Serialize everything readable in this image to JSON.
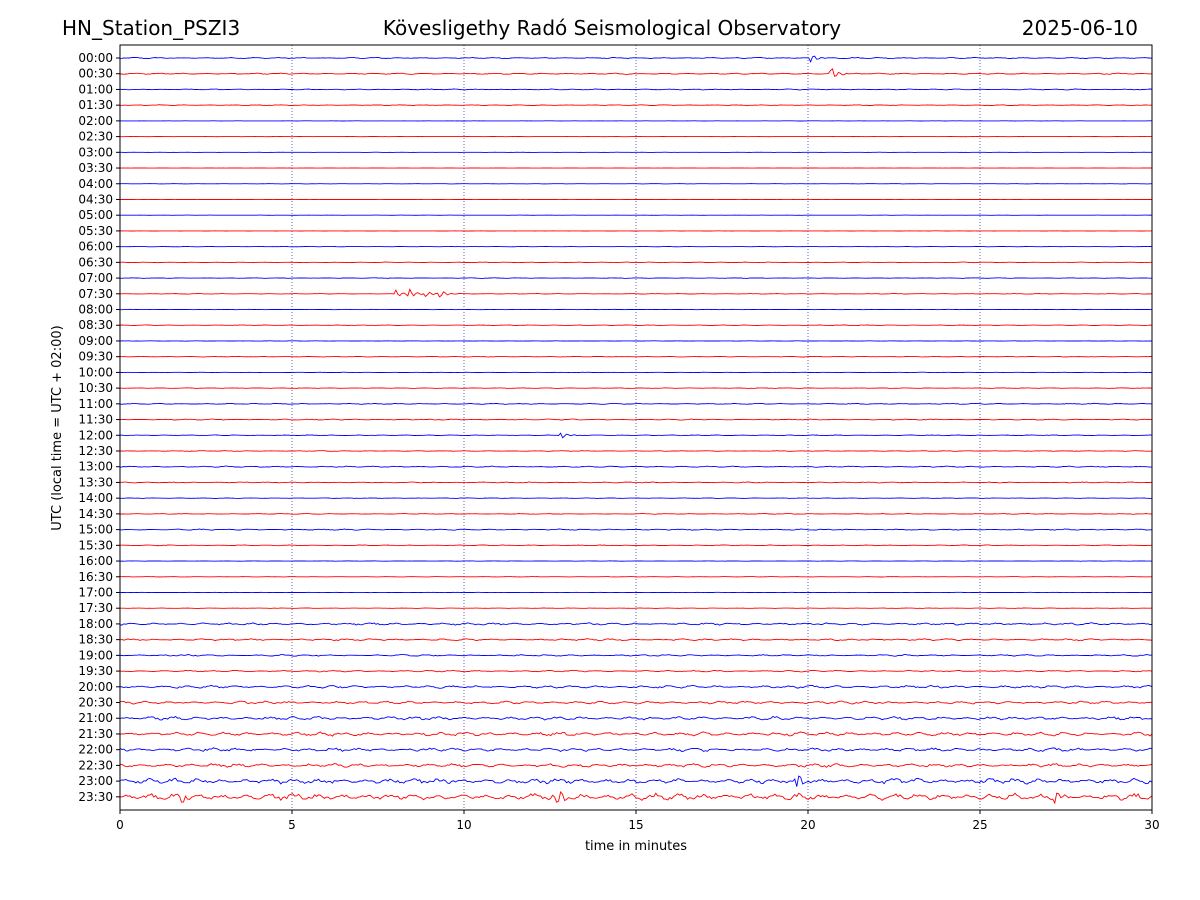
{
  "header": {
    "station": "HN_Station_PSZI3",
    "observatory": "Kövesligethy Radó Seismological Observatory",
    "date": "2025-06-10"
  },
  "chart_data": {
    "type": "line",
    "title": "Kövesligethy Radó Seismological Observatory",
    "xlabel": "time in minutes",
    "ylabel": "UTC (local time = UTC + 02:00)",
    "xlim": [
      0,
      30
    ],
    "x_ticks": [
      "0",
      "5",
      "10",
      "15",
      "20",
      "25",
      "30"
    ],
    "grid": {
      "x_dotted": true,
      "x_positions": [
        5,
        10,
        15,
        20,
        25
      ]
    },
    "trace_colors": [
      "#0000ff",
      "#ff0000"
    ],
    "rows": [
      "00:00",
      "00:30",
      "01:00",
      "01:30",
      "02:00",
      "02:30",
      "03:00",
      "03:30",
      "04:00",
      "04:30",
      "05:00",
      "05:30",
      "06:00",
      "06:30",
      "07:00",
      "07:30",
      "08:00",
      "08:30",
      "09:00",
      "09:30",
      "10:00",
      "10:30",
      "11:00",
      "11:30",
      "12:00",
      "12:30",
      "13:00",
      "13:30",
      "14:00",
      "14:30",
      "15:00",
      "15:30",
      "16:00",
      "16:30",
      "17:00",
      "17:30",
      "18:00",
      "18:30",
      "19:00",
      "19:30",
      "20:00",
      "20:30",
      "21:00",
      "21:30",
      "22:00",
      "22:30",
      "23:00",
      "23:30"
    ],
    "activity": [
      0.6,
      0.6,
      0.5,
      0.4,
      0.1,
      0.1,
      0.1,
      0.1,
      0.15,
      0.1,
      0.1,
      0.1,
      0.2,
      0.3,
      0.3,
      0.3,
      0.2,
      0.3,
      0.2,
      0.3,
      0.2,
      0.3,
      0.5,
      0.5,
      0.4,
      0.4,
      0.6,
      0.5,
      0.3,
      0.4,
      0.6,
      0.4,
      0.2,
      0.2,
      0.2,
      0.2,
      1.2,
      1.0,
      0.8,
      0.8,
      1.4,
      1.4,
      1.8,
      2.0,
      1.8,
      1.8,
      2.8,
      3.5
    ],
    "events": [
      {
        "row": "00:00",
        "minute": 20.1,
        "amplitude": 4
      },
      {
        "row": "00:30",
        "minute": 20.7,
        "amplitude": 6
      },
      {
        "row": "07:30",
        "minute": 8.0,
        "amplitude": 4
      },
      {
        "row": "07:30",
        "minute": 8.4,
        "amplitude": 5
      },
      {
        "row": "07:30",
        "minute": 8.9,
        "amplitude": 3
      },
      {
        "row": "07:30",
        "minute": 9.3,
        "amplitude": 4
      },
      {
        "row": "12:00",
        "minute": 12.8,
        "amplitude": 4
      },
      {
        "row": "23:00",
        "minute": 19.7,
        "amplitude": 7
      },
      {
        "row": "23:30",
        "minute": 12.7,
        "amplitude": 12
      },
      {
        "row": "23:30",
        "minute": 1.8,
        "amplitude": 7
      },
      {
        "row": "23:30",
        "minute": 27.2,
        "amplitude": 8
      }
    ]
  }
}
